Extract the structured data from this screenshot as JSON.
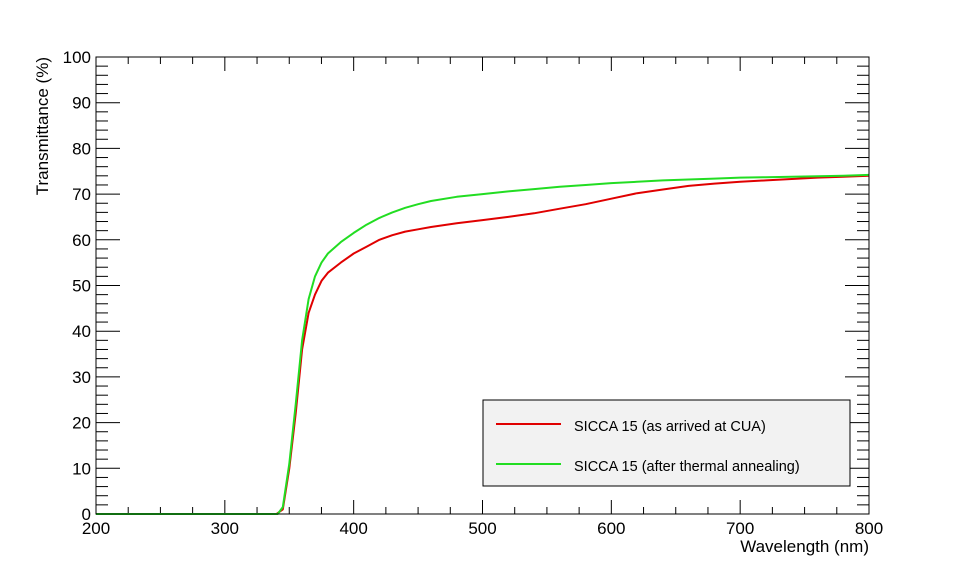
{
  "chart_data": {
    "type": "line",
    "title": "",
    "xlabel": "Wavelength (nm)",
    "ylabel": "Transmittance (%)",
    "xlim": [
      200,
      800
    ],
    "ylim": [
      0,
      100
    ],
    "x_ticks": [
      200,
      300,
      400,
      500,
      600,
      700,
      800
    ],
    "y_ticks": [
      0,
      10,
      20,
      30,
      40,
      50,
      60,
      70,
      80,
      90,
      100
    ],
    "grid": false,
    "legend_position": "bottom-right",
    "series": [
      {
        "name": "SICCA 15 (as arrived at CUA)",
        "color": "#e00000",
        "points": [
          [
            200,
            0
          ],
          [
            340,
            0
          ],
          [
            345,
            1
          ],
          [
            350,
            10
          ],
          [
            355,
            22
          ],
          [
            360,
            36
          ],
          [
            365,
            44
          ],
          [
            370,
            48
          ],
          [
            375,
            51
          ],
          [
            380,
            52.8
          ],
          [
            390,
            55
          ],
          [
            400,
            57
          ],
          [
            410,
            58.5
          ],
          [
            420,
            60
          ],
          [
            430,
            61
          ],
          [
            440,
            61.8
          ],
          [
            450,
            62.3
          ],
          [
            460,
            62.8
          ],
          [
            480,
            63.6
          ],
          [
            500,
            64.3
          ],
          [
            520,
            65
          ],
          [
            540,
            65.8
          ],
          [
            560,
            66.8
          ],
          [
            580,
            67.8
          ],
          [
            600,
            69
          ],
          [
            620,
            70.2
          ],
          [
            640,
            71
          ],
          [
            660,
            71.8
          ],
          [
            680,
            72.3
          ],
          [
            700,
            72.7
          ],
          [
            720,
            73
          ],
          [
            740,
            73.3
          ],
          [
            760,
            73.6
          ],
          [
            780,
            73.8
          ],
          [
            800,
            74
          ]
        ]
      },
      {
        "name": "SICCA 15 (after thermal annealing)",
        "color": "#22dd22",
        "points": [
          [
            200,
            0
          ],
          [
            341,
            0
          ],
          [
            345,
            1.5
          ],
          [
            350,
            11
          ],
          [
            355,
            24
          ],
          [
            360,
            38
          ],
          [
            365,
            47
          ],
          [
            370,
            52
          ],
          [
            375,
            55
          ],
          [
            380,
            57
          ],
          [
            390,
            59.5
          ],
          [
            400,
            61.5
          ],
          [
            410,
            63.3
          ],
          [
            420,
            64.8
          ],
          [
            430,
            66
          ],
          [
            440,
            67
          ],
          [
            450,
            67.8
          ],
          [
            460,
            68.5
          ],
          [
            480,
            69.4
          ],
          [
            500,
            70
          ],
          [
            520,
            70.6
          ],
          [
            540,
            71.1
          ],
          [
            560,
            71.6
          ],
          [
            580,
            72
          ],
          [
            600,
            72.4
          ],
          [
            620,
            72.7
          ],
          [
            640,
            73
          ],
          [
            660,
            73.2
          ],
          [
            680,
            73.4
          ],
          [
            700,
            73.6
          ],
          [
            720,
            73.7
          ],
          [
            740,
            73.8
          ],
          [
            760,
            73.9
          ],
          [
            780,
            74
          ],
          [
            800,
            74.2
          ]
        ]
      }
    ]
  }
}
